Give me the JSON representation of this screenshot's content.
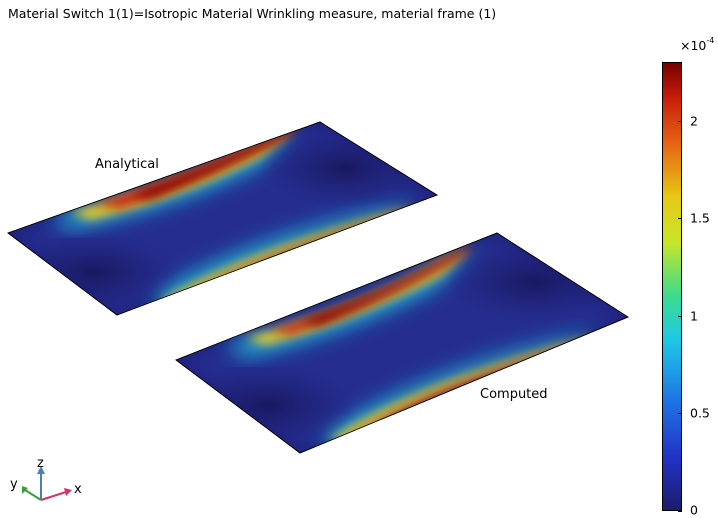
{
  "plot": {
    "title": "Material Switch 1(1)=Isotropic Material  Wrinkling measure, material frame (1)"
  },
  "plates": {
    "top": {
      "label": "Analytical"
    },
    "bottom": {
      "label": "Computed"
    }
  },
  "colorbar": {
    "multiplier_base": "×10",
    "multiplier_exp": "-4",
    "ticks": [
      "0",
      "0.5",
      "1",
      "1.5",
      "2"
    ],
    "tick_values": [
      0,
      0.5,
      1,
      1.5,
      2
    ],
    "max_value": 2.3,
    "colormap": "rainbow"
  },
  "axes_triad": {
    "x": "x",
    "y": "y",
    "z": "z",
    "x_color": "#d6336c",
    "y_color": "#3a9d3a",
    "z_color": "#4a7fb5"
  }
}
